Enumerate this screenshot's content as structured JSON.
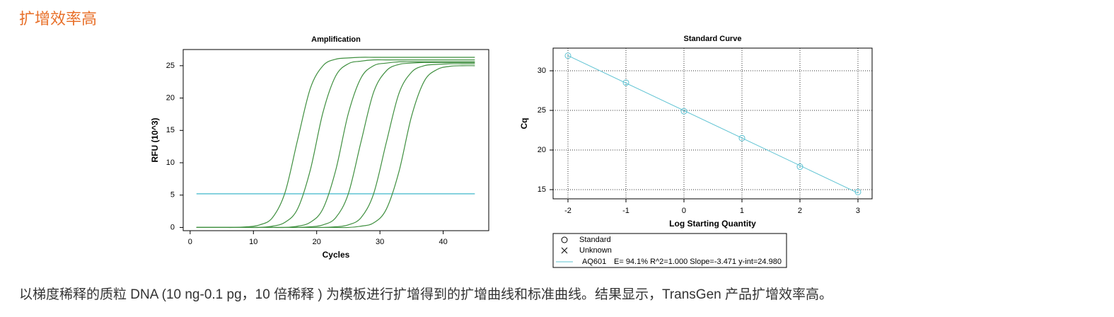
{
  "heading": "扩增效率高",
  "chart_data": [
    {
      "type": "line",
      "title": "Amplification",
      "x_label": "Cycles",
      "y_label": "RFU (10^3)",
      "x": [
        1,
        3,
        5,
        7,
        9,
        11,
        13,
        15,
        17,
        19,
        21,
        23,
        25,
        27,
        29,
        31,
        33,
        35,
        37,
        39,
        41,
        43,
        45
      ],
      "series": [
        {
          "color": "#3f8f3f",
          "values": [
            0,
            0,
            0,
            0,
            0.1,
            0.4,
            1.5,
            5.4,
            13.6,
            21.5,
            25.0,
            26.0,
            26.2,
            26.3,
            26.3,
            26.3,
            26.3,
            26.3,
            26.3,
            26.3,
            26.3,
            26.3,
            26.3
          ]
        },
        {
          "color": "#3f8f3f",
          "values": [
            0,
            0,
            0,
            0,
            0,
            0,
            0.2,
            0.8,
            2.9,
            8.9,
            17.8,
            23.4,
            25.3,
            25.7,
            25.9,
            25.9,
            25.9,
            25.9,
            25.9,
            25.9,
            25.9,
            25.9,
            25.9
          ]
        },
        {
          "color": "#3f8f3f",
          "values": [
            0,
            0,
            0,
            0,
            0,
            0,
            0,
            0,
            0.2,
            0.8,
            2.9,
            8.8,
            17.6,
            23.1,
            25.0,
            25.4,
            25.6,
            25.6,
            25.6,
            25.6,
            25.6,
            25.6,
            25.6
          ]
        },
        {
          "color": "#3f8f3f",
          "values": [
            0,
            0,
            0,
            0,
            0,
            0,
            0,
            0,
            0,
            0.1,
            0.4,
            1.5,
            5.2,
            13.2,
            20.9,
            24.2,
            25.2,
            25.4,
            25.5,
            25.5,
            25.5,
            25.5,
            25.5
          ]
        },
        {
          "color": "#3f8f3f",
          "values": [
            0,
            0,
            0,
            0,
            0,
            0,
            0,
            0,
            0,
            0,
            0,
            0.1,
            0.4,
            1.5,
            5.2,
            13.1,
            20.7,
            24.0,
            25.0,
            25.2,
            25.3,
            25.3,
            25.3
          ]
        },
        {
          "color": "#3f8f3f",
          "values": [
            0,
            0,
            0,
            0,
            0,
            0,
            0,
            0,
            0,
            0,
            0,
            0,
            0,
            0.2,
            0.7,
            2.8,
            8.6,
            17.2,
            22.6,
            24.4,
            24.9,
            25.0,
            25.0
          ]
        }
      ],
      "threshold": {
        "value": 5.2,
        "color": "#5fc3d3"
      },
      "xlim": [
        -1.1,
        47.2
      ],
      "ylim": [
        -0.5,
        27.5
      ],
      "xticks": [
        0,
        10,
        20,
        30,
        40
      ],
      "yticks": [
        0,
        5,
        10,
        15,
        20,
        25
      ],
      "grid": false
    },
    {
      "type": "scatter",
      "title": "Standard Curve",
      "x_label": "Log Starting Quantity",
      "y_label": "Cq",
      "x": [
        -2,
        -1,
        0,
        1,
        2,
        3
      ],
      "series": [
        {
          "name": "AQ601",
          "color": "#5fc3d3",
          "values": [
            31.9,
            28.5,
            24.9,
            21.5,
            17.9,
            14.7
          ]
        }
      ],
      "fit": {
        "x": [
          -2,
          3
        ],
        "values": [
          31.92,
          14.57
        ]
      },
      "fit_label": "E= 94.1% R^2=1.000 Slope=-3.471 y-int=24.980",
      "legend_entries": [
        "Standard",
        "Unknown"
      ],
      "xlim": [
        -2.256,
        3.244
      ],
      "ylim": [
        13.84,
        32.86
      ],
      "xticks": [
        -2,
        -1,
        0,
        1,
        2,
        3
      ],
      "yticks": [
        15,
        20,
        25,
        30
      ],
      "grid": true
    }
  ],
  "caption": "以梯度稀释的质粒 DNA (10 ng-0.1 pg，10 倍稀释 ) 为模板进行扩增得到的扩增曲线和标准曲线。结果显示，TransGen 产品扩增效率高。"
}
